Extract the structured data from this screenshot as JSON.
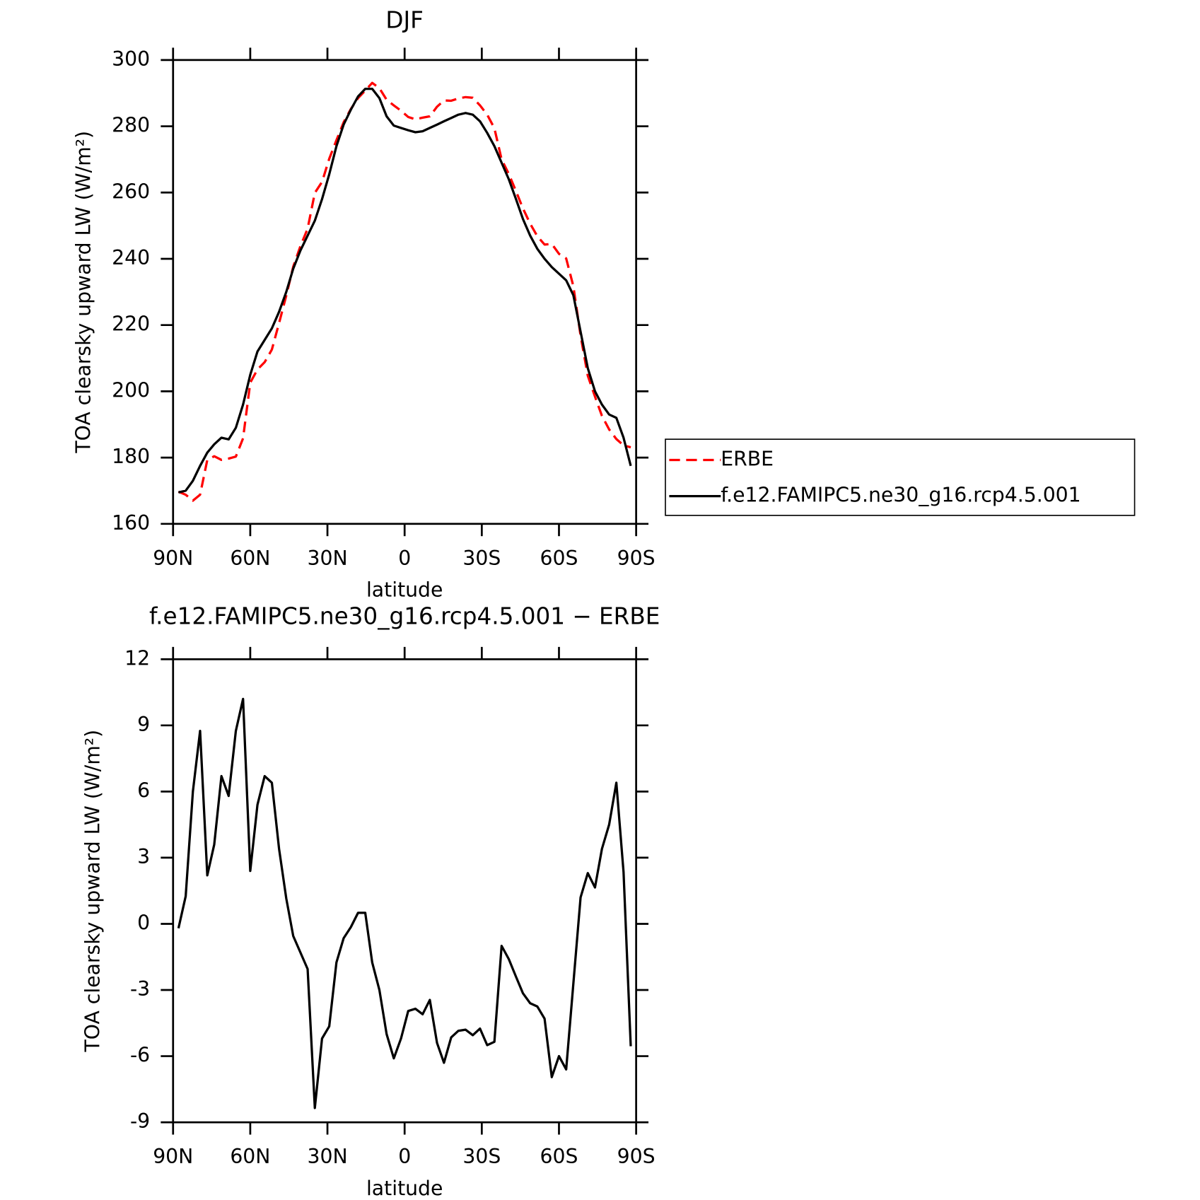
{
  "chart_data": [
    {
      "type": "line",
      "title": "DJF",
      "xlabel": "latitude",
      "ylabel": "TOA clearsky upward LW (W/m²)",
      "x": [
        87.9,
        85.1,
        82.3,
        79.5,
        76.7,
        74.0,
        71.2,
        68.4,
        65.6,
        62.8,
        60.0,
        57.2,
        54.4,
        51.6,
        48.8,
        46.0,
        43.3,
        40.5,
        37.7,
        34.9,
        32.1,
        29.3,
        26.5,
        23.7,
        20.9,
        18.1,
        15.3,
        12.6,
        9.8,
        7.0,
        4.2,
        1.4,
        -1.4,
        -4.2,
        -7.0,
        -9.8,
        -12.6,
        -15.3,
        -18.1,
        -20.9,
        -23.7,
        -26.5,
        -29.3,
        -32.1,
        -34.9,
        -37.7,
        -40.5,
        -43.3,
        -46.0,
        -48.8,
        -51.6,
        -54.4,
        -57.2,
        -60.0,
        -62.8,
        -65.6,
        -68.4,
        -71.2,
        -74.0,
        -76.7,
        -79.5,
        -82.3,
        -85.1,
        -87.9
      ],
      "series": [
        {
          "name": "ERBE",
          "color": "#ff0000",
          "line_style": "dashed",
          "values": [
            169.7,
            168.8,
            167,
            168.8,
            179.3,
            180.4,
            179.3,
            179.7,
            180.3,
            185.8,
            202.6,
            206.6,
            208.8,
            212.6,
            220.6,
            228.9,
            237.6,
            243.8,
            249.1,
            259.9,
            263.2,
            270.2,
            275.8,
            281.2,
            285.2,
            288.5,
            290.8,
            293.1,
            291.5,
            288,
            286.3,
            284.7,
            282.8,
            282.1,
            282.6,
            283,
            285.9,
            287.8,
            287.7,
            288.4,
            288.8,
            288.6,
            286.3,
            283.5,
            279.4,
            270,
            265.6,
            260.4,
            255.2,
            250.6,
            246.8,
            244.3,
            244.5,
            241.5,
            240.1,
            231.7,
            216.8,
            204.7,
            198.4,
            192.6,
            188.5,
            185.6,
            183.7,
            183.1
          ]
        },
        {
          "name": "f.e12.FAMIPC5.ne30_g16.rcp4.5.001",
          "color": "#000000",
          "line_style": "solid",
          "values": [
            169.5,
            170,
            173,
            177.5,
            181.5,
            184,
            186,
            185.5,
            189,
            196,
            205,
            212,
            215.5,
            219,
            224,
            230,
            237,
            242.5,
            247,
            251.5,
            258,
            265.5,
            274,
            280.5,
            285,
            289,
            291.3,
            291.3,
            288.5,
            283,
            280.2,
            279.5,
            278.8,
            278.2,
            278.5,
            279.5,
            280.5,
            281.5,
            282.5,
            283.5,
            284,
            283.5,
            281.5,
            278,
            274,
            269,
            264,
            258,
            252,
            247,
            243,
            240,
            237.5,
            235.5,
            233.5,
            229,
            218,
            207,
            200,
            196,
            193,
            192,
            186,
            177.5
          ]
        }
      ],
      "xlim": [
        90,
        -90
      ],
      "xticks": [
        {
          "value": 90,
          "label": "90N"
        },
        {
          "value": 60,
          "label": "60N"
        },
        {
          "value": 30,
          "label": "30N"
        },
        0,
        {
          "value": -30,
          "label": "30S"
        },
        {
          "value": -60,
          "label": "60S"
        },
        {
          "value": -90,
          "label": "90S"
        }
      ],
      "ylim": [
        160,
        300
      ],
      "yticks": [
        160,
        180,
        200,
        220,
        240,
        260,
        280,
        300
      ],
      "legend": "right"
    },
    {
      "type": "line",
      "title": "f.e12.FAMIPC5.ne30_g16.rcp4.5.001 − ERBE",
      "xlabel": "latitude",
      "ylabel": "TOA clearsky upward LW (W/m²)",
      "x": [
        87.9,
        85.1,
        82.3,
        79.5,
        76.7,
        74.0,
        71.2,
        68.4,
        65.6,
        62.8,
        60.0,
        57.2,
        54.4,
        51.6,
        48.8,
        46.0,
        43.3,
        40.5,
        37.7,
        34.9,
        32.1,
        29.3,
        26.5,
        23.7,
        20.9,
        18.1,
        15.3,
        12.6,
        9.8,
        7.0,
        4.2,
        1.4,
        -1.4,
        -4.2,
        -7.0,
        -9.8,
        -12.6,
        -15.3,
        -18.1,
        -20.9,
        -23.7,
        -26.5,
        -29.3,
        -32.1,
        -34.9,
        -37.7,
        -40.5,
        -43.3,
        -46.0,
        -48.8,
        -51.6,
        -54.4,
        -57.2,
        -60.0,
        -62.8,
        -65.6,
        -68.4,
        -71.2,
        -74.0,
        -76.7,
        -79.5,
        -82.3,
        -85.1,
        -87.9
      ],
      "series": [
        {
          "color": "#000000",
          "line_style": "solid",
          "values": [
            -0.2,
            1.25,
            6,
            8.75,
            2.2,
            3.6,
            6.7,
            5.8,
            8.75,
            10.2,
            2.4,
            5.4,
            6.7,
            6.4,
            3.4,
            1.15,
            -0.55,
            -1.3,
            -2.05,
            -8.35,
            -5.2,
            -4.65,
            -1.75,
            -0.65,
            -0.15,
            0.5,
            0.5,
            -1.75,
            -3,
            -5,
            -6.1,
            -5.2,
            -3.95,
            -3.85,
            -4.1,
            -3.45,
            -5.4,
            -6.3,
            -5.15,
            -4.85,
            -4.8,
            -5.05,
            -4.75,
            -5.5,
            -5.35,
            -1,
            -1.6,
            -2.4,
            -3.15,
            -3.6,
            -3.75,
            -4.3,
            -6.95,
            -6,
            -6.6,
            -2.7,
            1.2,
            2.3,
            1.65,
            3.4,
            4.5,
            6.4,
            2.35,
            -5.55
          ]
        }
      ],
      "xlim": [
        90,
        -90
      ],
      "xticks": [
        {
          "value": 90,
          "label": "90N"
        },
        {
          "value": 60,
          "label": "60N"
        },
        {
          "value": 30,
          "label": "30N"
        },
        0,
        {
          "value": -30,
          "label": "30S"
        },
        {
          "value": -60,
          "label": "60S"
        },
        {
          "value": -90,
          "label": "90S"
        }
      ],
      "ylim": [
        -9,
        12
      ],
      "yticks": [
        -9,
        -6,
        -3,
        0,
        3,
        6,
        9,
        12
      ]
    }
  ]
}
